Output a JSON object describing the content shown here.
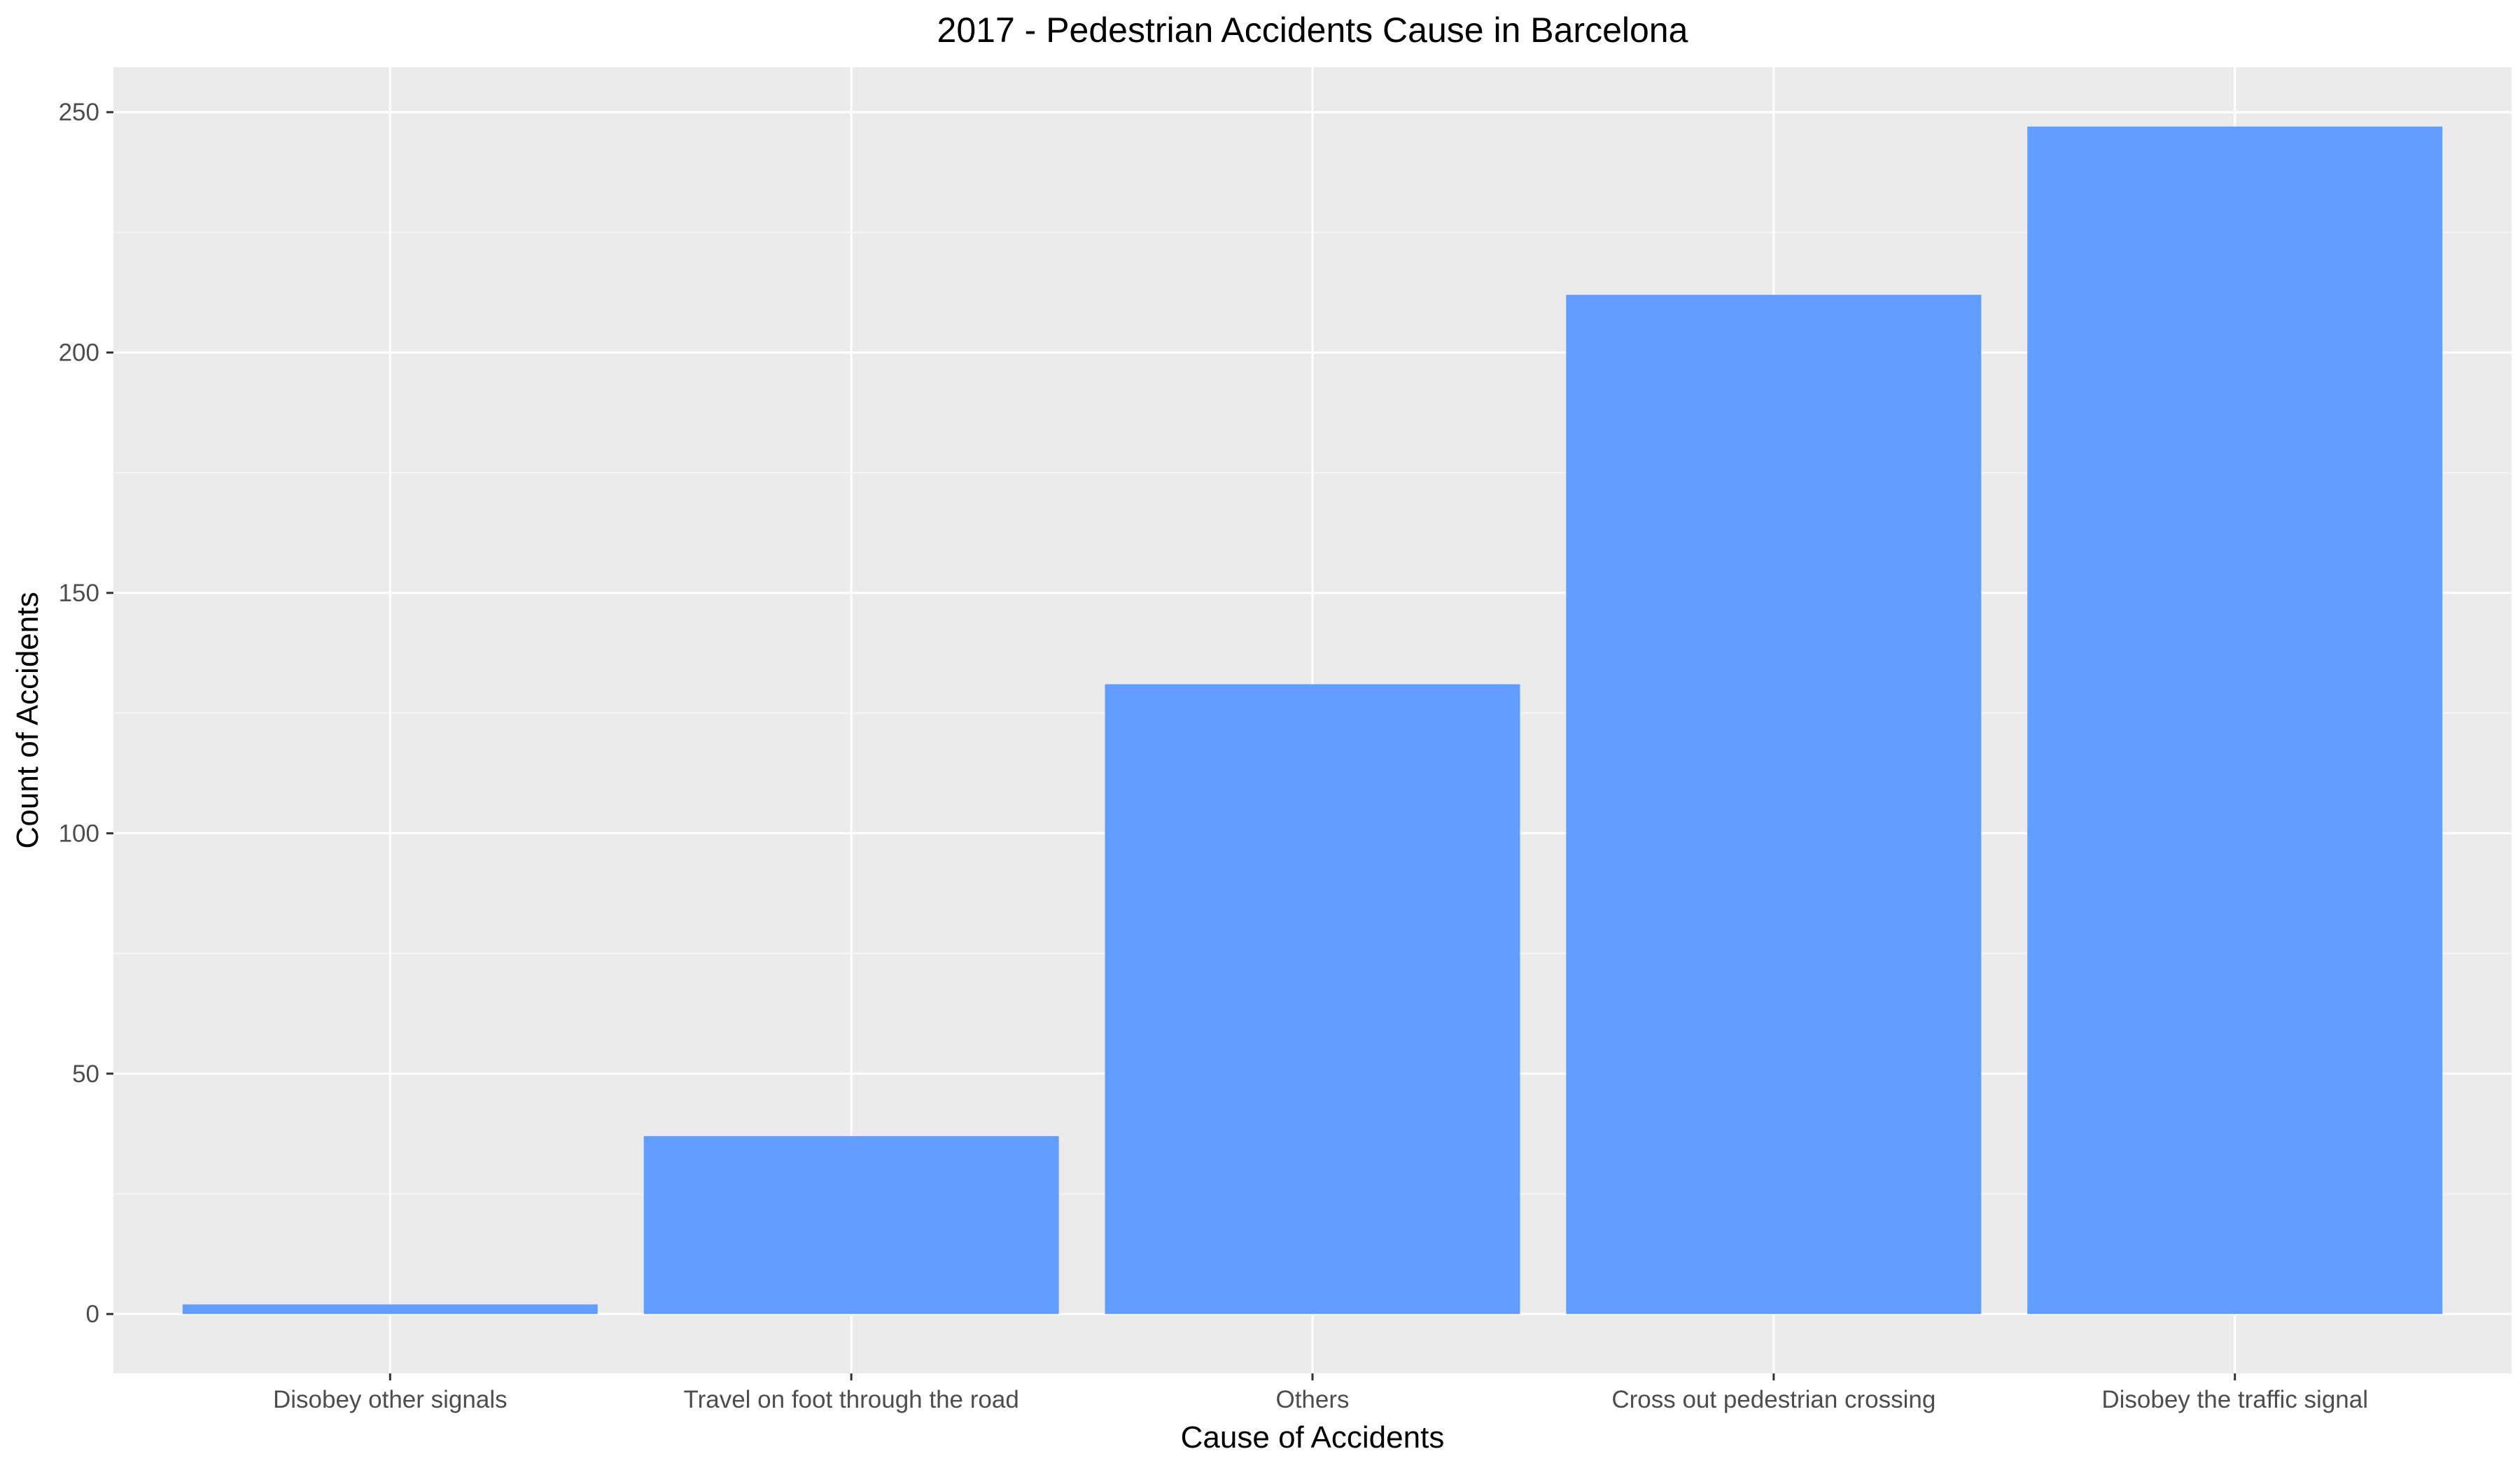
{
  "chart_data": {
    "type": "bar",
    "title": "2017 - Pedestrian Accidents Cause in Barcelona",
    "xlabel": "Cause of Accidents",
    "ylabel": "Count of Accidents",
    "categories": [
      "Disobey other signals",
      "Travel on foot through the road",
      "Others",
      "Cross out pedestrian crossing",
      "Disobey the traffic signal"
    ],
    "values": [
      2,
      37,
      131,
      212,
      247
    ],
    "ylim": [
      -12.35,
      259.35
    ],
    "yticks": [
      0,
      50,
      100,
      150,
      200,
      250
    ],
    "ytick_labels": [
      "0",
      "50",
      "100",
      "150",
      "200",
      "250"
    ],
    "grid": true,
    "legend": "none",
    "colors": {
      "bar": "#619CFF",
      "panel_background": "#EBEBEB",
      "grid_major": "#FFFFFF",
      "grid_minor": "#F5F5F5"
    }
  }
}
